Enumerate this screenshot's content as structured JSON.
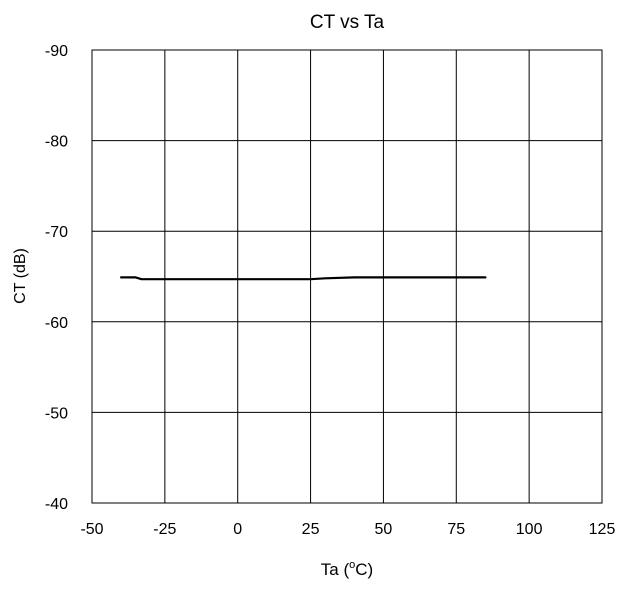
{
  "chart_data": {
    "type": "line",
    "title": "CT vs Ta",
    "xlabel": "Ta (",
    "xlabel_superscript": "o",
    "xlabel_suffix": "C)",
    "ylabel": "CT (dB)",
    "xlim": [
      -50,
      125
    ],
    "ylim": [
      -40,
      -90
    ],
    "x_ticks": [
      -50,
      -25,
      0,
      25,
      50,
      75,
      100,
      125
    ],
    "y_ticks": [
      -90,
      -80,
      -70,
      -60,
      -50,
      -40
    ],
    "x_tick_labels": [
      "-50",
      "-25",
      "0",
      "25",
      "50",
      "75",
      "100",
      "125"
    ],
    "y_tick_labels": [
      "-90",
      "-80",
      "-70",
      "-60",
      "-50",
      "-40"
    ],
    "grid": true,
    "legend": "none",
    "series": [
      {
        "color": "#000000",
        "x": [
          -40,
          -35,
          -33,
          -25,
          0,
          25,
          30,
          40,
          50,
          75,
          85
        ],
        "y": [
          -64.9,
          -64.9,
          -64.7,
          -64.7,
          -64.7,
          -64.7,
          -64.8,
          -64.9,
          -64.9,
          -64.9,
          -64.9
        ]
      }
    ]
  }
}
